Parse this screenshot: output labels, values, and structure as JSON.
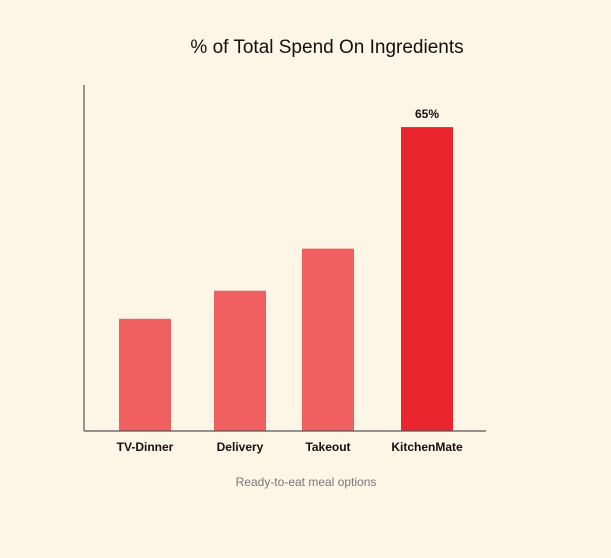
{
  "chart_data": {
    "type": "bar",
    "title": "% of Total Spend On Ingredients",
    "xlabel": "Ready-to-eat meal options",
    "ylabel": "",
    "categories": [
      "TV-Dinner",
      "Delivery",
      "Takeout",
      "KitchenMate"
    ],
    "values": [
      24,
      30,
      39,
      65
    ],
    "data_labels": [
      "",
      "",
      "",
      "65%"
    ],
    "ylim": [
      0,
      74
    ],
    "grid": false,
    "legend": "none",
    "colors": {
      "bar": "#f06060",
      "highlight": "#ea252d",
      "axis": "#555555",
      "background": "#fdf5e6"
    },
    "highlight_index": 3
  }
}
